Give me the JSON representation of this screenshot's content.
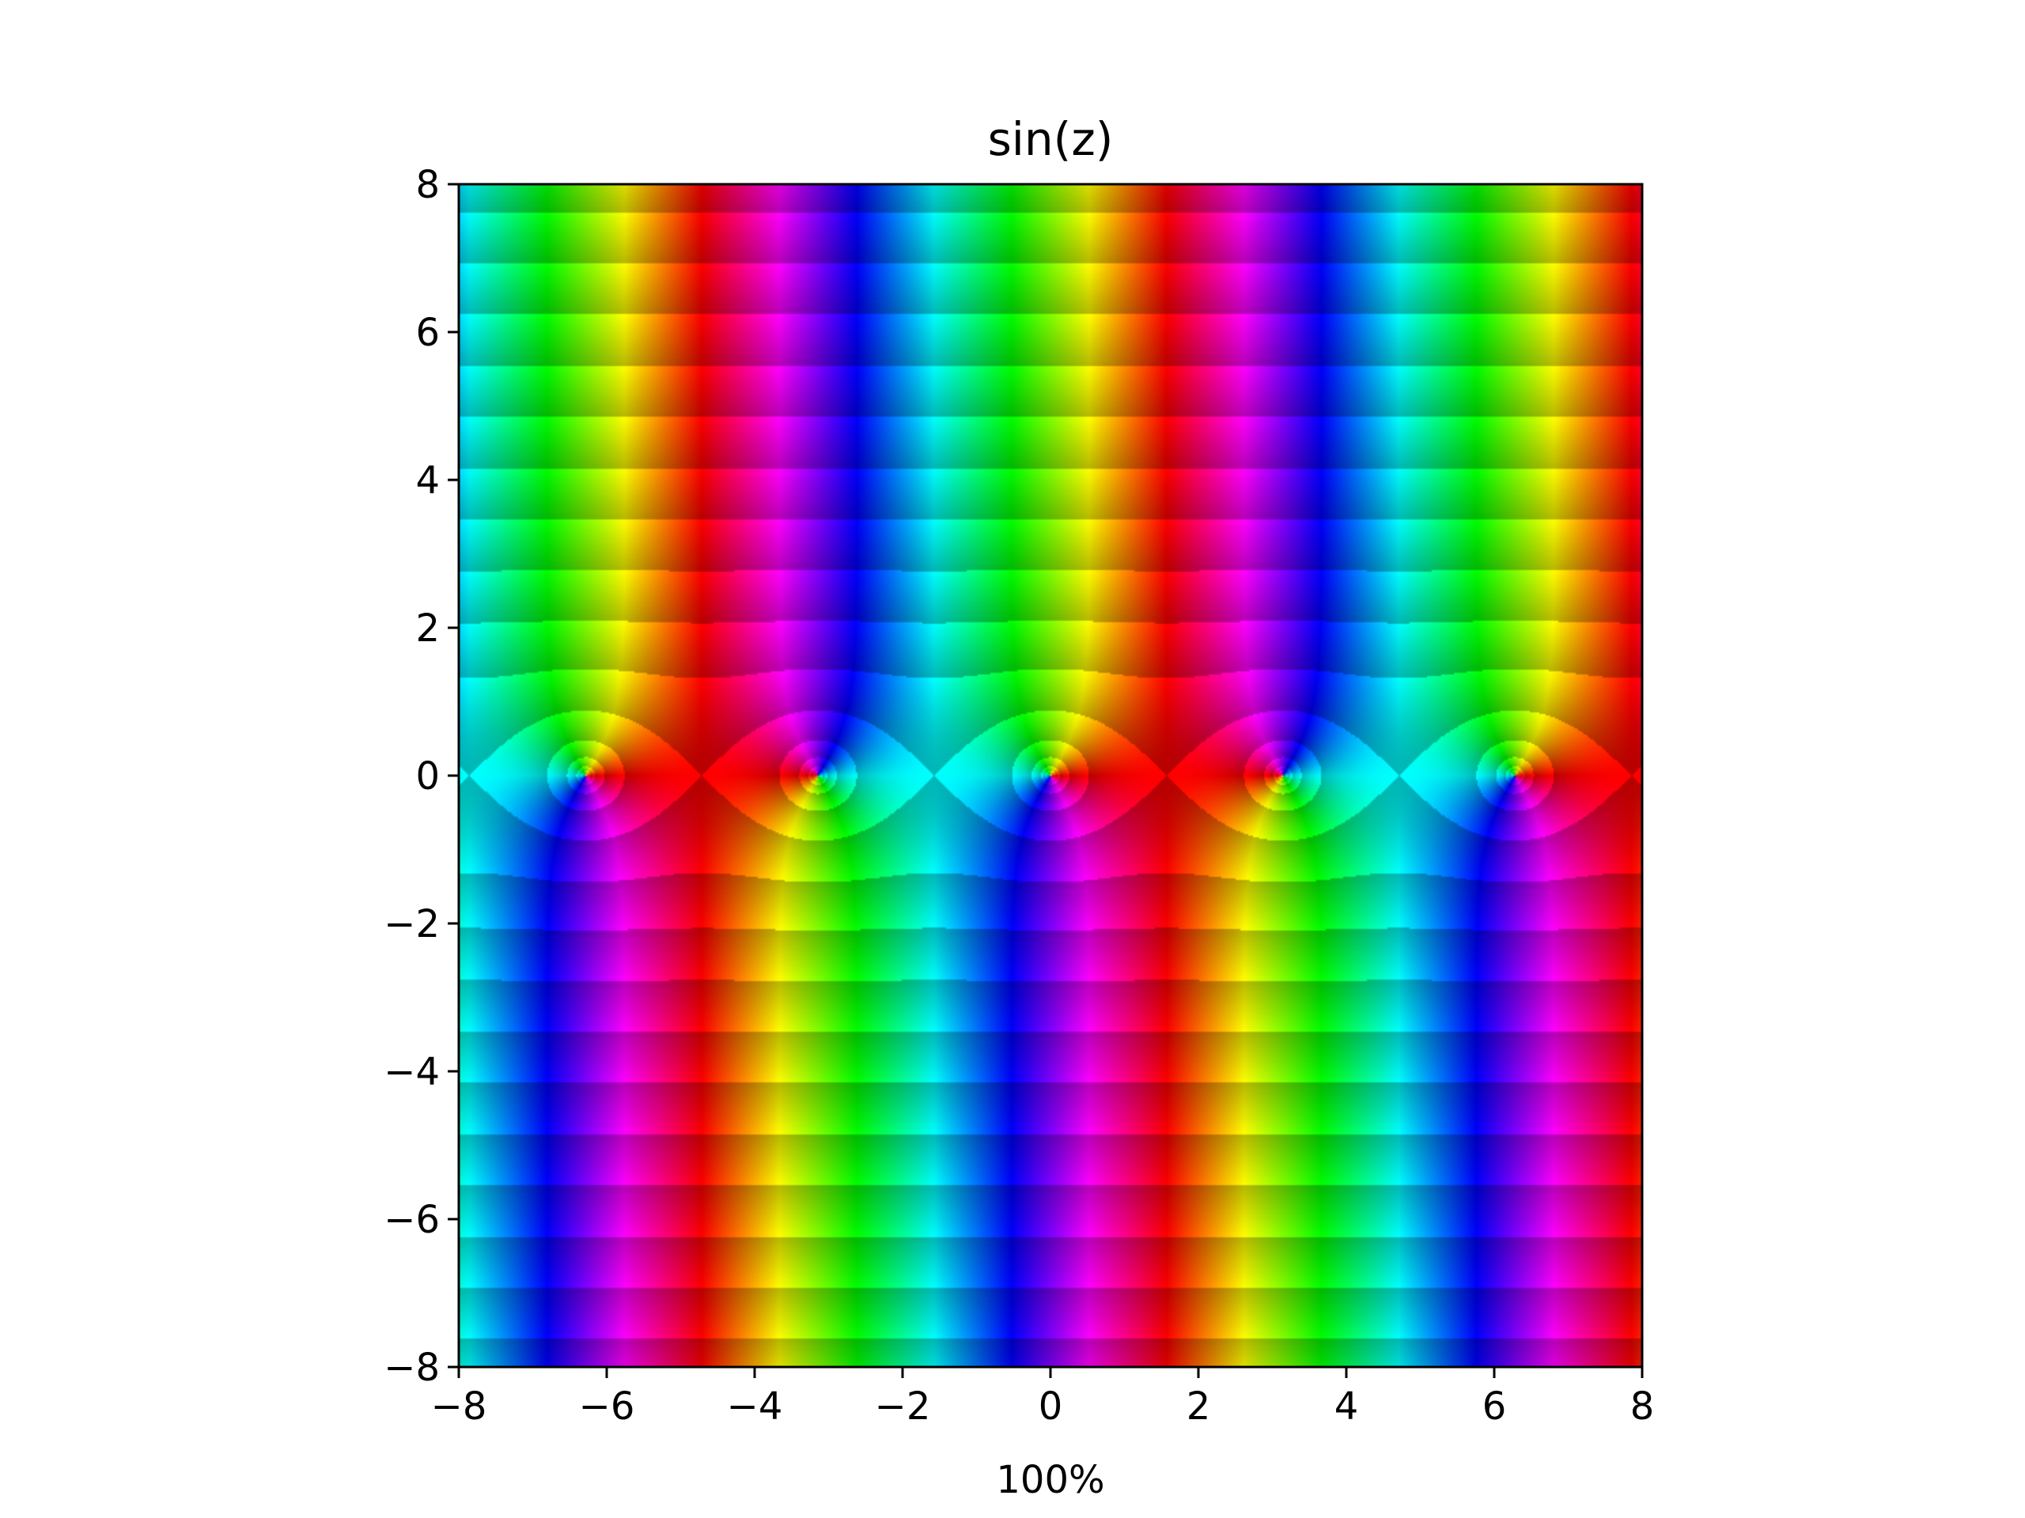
{
  "chart_data": {
    "type": "heatmap",
    "title": "sin(z)",
    "xlabel": "100%",
    "ylabel": "",
    "function": "sin(z)",
    "colormap": "hue = arg(f(z)), brightness bands = log|f(z)|",
    "xlim": [
      -8,
      8
    ],
    "ylim": [
      -8,
      8
    ],
    "x_ticks": [
      -8,
      -6,
      -4,
      -2,
      0,
      2,
      4,
      6,
      8
    ],
    "y_ticks": [
      -8,
      -6,
      -4,
      -2,
      0,
      2,
      4,
      6,
      8
    ],
    "x_tick_labels": [
      "−8",
      "−6",
      "−4",
      "−2",
      "0",
      "2",
      "4",
      "6",
      "8"
    ],
    "y_tick_labels": [
      "−8",
      "−6",
      "−4",
      "−2",
      "0",
      "2",
      "4",
      "6",
      "8"
    ],
    "zeros_visible": [
      {
        "re": -6.283,
        "im": 0
      },
      {
        "re": -3.142,
        "im": 0
      },
      {
        "re": 0,
        "im": 0
      },
      {
        "re": 3.142,
        "im": 0
      },
      {
        "re": 6.283,
        "im": 0
      }
    ],
    "grid": false,
    "legend": "none"
  }
}
